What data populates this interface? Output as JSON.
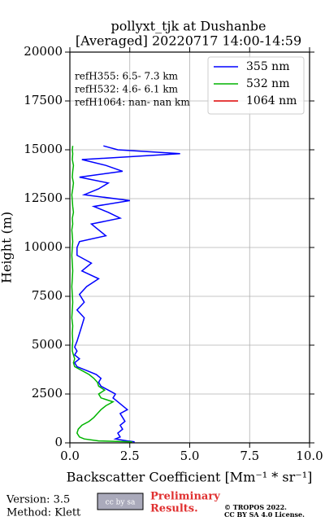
{
  "chart_data": {
    "type": "line",
    "title": [
      "pollyxt_tjk at Dushanbe",
      "[Averaged] 20220717 14:00-14:59"
    ],
    "xlabel": "Backscatter Coefficient [Mm⁻¹ * sr⁻¹]",
    "ylabel": "Height (m)",
    "annotations": [
      "refH355:  6.5- 7.3 km",
      "refH532:  4.6- 6.1 km",
      "refH1064:  nan- nan km"
    ],
    "footer": {
      "version": "Version: 3.5",
      "method": "Method: Klett",
      "cc": "cc by sa",
      "preliminary": [
        "Preliminary",
        "Results."
      ],
      "license": [
        "© TROPOS 2022.",
        "CC BY SA 4.0 License."
      ]
    },
    "xlim": [
      0,
      10
    ],
    "ylim": [
      0,
      20000
    ],
    "xticks": [
      {
        "value": 0,
        "label": "0.0"
      },
      {
        "value": 2.5,
        "label": "2.5"
      },
      {
        "value": 5,
        "label": "5.0"
      },
      {
        "value": 7.5,
        "label": "7.5"
      },
      {
        "value": 10,
        "label": "10.0"
      }
    ],
    "yticks": [
      0,
      2500,
      5000,
      7500,
      10000,
      12500,
      15000,
      17500,
      20000
    ],
    "grid": true,
    "legend": "upper right",
    "y": [
      50,
      100,
      200,
      300,
      500,
      700,
      900,
      1100,
      1300,
      1500,
      1700,
      1900,
      2100,
      2300,
      2500,
      2700,
      2900,
      3100,
      3300,
      3500,
      3700,
      3900,
      4100,
      4300,
      4500,
      4700,
      4900,
      5200,
      5600,
      6000,
      6400,
      6800,
      7200,
      7600,
      8000,
      8400,
      8800,
      9200,
      9600,
      10000,
      10300,
      10600,
      10900,
      11200,
      11500,
      11800,
      12100,
      12400,
      12700,
      13000,
      13300,
      13600,
      13900,
      14200,
      14500,
      14800,
      15000,
      15200
    ],
    "series": [
      {
        "name": "355 nm",
        "color": "#0000ff",
        "values": [
          2.7,
          2.4,
          1.9,
          2.1,
          2.0,
          2.2,
          2.1,
          2.3,
          2.2,
          2.1,
          2.4,
          2.2,
          2.0,
          1.8,
          1.9,
          1.6,
          1.3,
          1.2,
          1.3,
          1.1,
          0.7,
          0.3,
          0.2,
          0.4,
          0.2,
          0.3,
          0.2,
          0.3,
          0.4,
          0.5,
          0.6,
          0.3,
          0.6,
          0.4,
          0.7,
          1.2,
          0.5,
          0.9,
          0.3,
          0.3,
          0.4,
          1.5,
          1.2,
          0.9,
          2.1,
          1.6,
          1.0,
          2.5,
          0.6,
          1.2,
          1.6,
          0.4,
          2.2,
          1.5,
          0.5,
          4.6,
          2.0,
          1.4
        ]
      },
      {
        "name": "532 nm",
        "color": "#00b400",
        "values": [
          2.6,
          1.2,
          0.6,
          0.4,
          0.3,
          0.35,
          0.5,
          0.8,
          1.0,
          1.15,
          1.3,
          1.5,
          1.8,
          1.3,
          1.2,
          1.45,
          1.2,
          1.15,
          1.0,
          0.8,
          0.5,
          0.2,
          0.15,
          0.2,
          0.15,
          0.1,
          0.1,
          0.12,
          0.1,
          0.12,
          0.08,
          0.1,
          0.12,
          0.1,
          0.08,
          0.1,
          0.12,
          0.1,
          0.08,
          0.1,
          0.12,
          0.1,
          0.08,
          0.12,
          0.1,
          0.15,
          0.12,
          0.1,
          0.08,
          0.12,
          0.15,
          0.1,
          0.12,
          0.15,
          0.1,
          0.12,
          0.1,
          0.12
        ]
      },
      {
        "name": "1064 nm",
        "color": "#dd0000",
        "values": [
          null,
          null,
          null,
          null,
          null,
          null,
          null,
          null,
          null,
          null,
          null,
          null,
          null,
          null,
          null,
          null,
          null,
          null,
          null,
          null,
          null,
          null,
          null,
          null,
          null,
          null,
          null,
          null,
          null,
          null,
          null,
          null,
          null,
          null,
          null,
          null,
          null,
          null,
          null,
          null,
          null,
          null,
          null,
          null,
          null,
          null,
          null,
          null,
          null,
          null,
          null,
          null,
          null,
          null,
          null,
          null,
          null,
          null
        ]
      }
    ]
  }
}
